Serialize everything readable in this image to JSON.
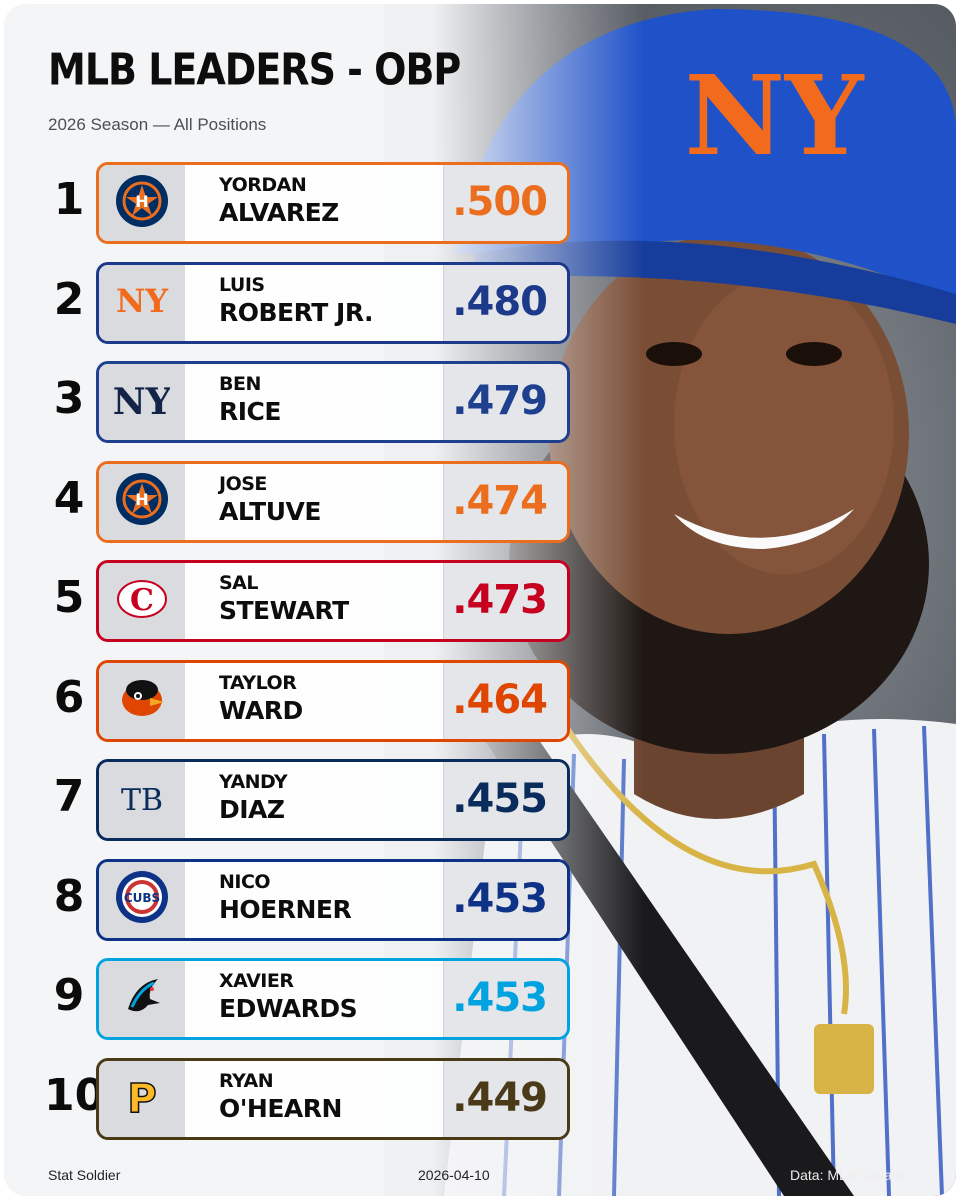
{
  "header": {
    "title": "MLB LEADERS - OBP",
    "subtitle": "2026 Season — All Positions"
  },
  "leaders": [
    {
      "rank": "1",
      "first": "YORDAN",
      "last": "ALVAREZ",
      "obp": ".500",
      "team_logo": "astros-logo",
      "color": "#eb6e1f"
    },
    {
      "rank": "2",
      "first": "LUIS",
      "last": "ROBERT JR.",
      "obp": ".480",
      "team_logo": "mets-logo",
      "color": "#1d3a8a"
    },
    {
      "rank": "3",
      "first": "BEN",
      "last": "RICE",
      "obp": ".479",
      "team_logo": "yankees-logo",
      "color": "#1f3f8f"
    },
    {
      "rank": "4",
      "first": "JOSE",
      "last": "ALTUVE",
      "obp": ".474",
      "team_logo": "astros-logo",
      "color": "#eb6e1f"
    },
    {
      "rank": "5",
      "first": "SAL",
      "last": "STEWART",
      "obp": ".473",
      "team_logo": "reds-logo",
      "color": "#c6011f"
    },
    {
      "rank": "6",
      "first": "TAYLOR",
      "last": "WARD",
      "obp": ".464",
      "team_logo": "orioles-logo",
      "color": "#df4601"
    },
    {
      "rank": "7",
      "first": "YANDY",
      "last": "DIAZ",
      "obp": ".455",
      "team_logo": "rays-logo",
      "color": "#092c5c"
    },
    {
      "rank": "8",
      "first": "NICO",
      "last": "HOERNER",
      "obp": ".453",
      "team_logo": "cubs-logo",
      "color": "#0e3386"
    },
    {
      "rank": "9",
      "first": "XAVIER",
      "last": "EDWARDS",
      "obp": ".453",
      "team_logo": "marlins-logo",
      "color": "#00a3e0"
    },
    {
      "rank": "10",
      "first": "RYAN",
      "last": "O'HEARN",
      "obp": ".449",
      "team_logo": "pirates-logo",
      "color": "#4a3a18"
    }
  ],
  "footer": {
    "brand": "Stat Soldier",
    "date": "2026-04-10",
    "source": "Data: MLB/Savant"
  }
}
